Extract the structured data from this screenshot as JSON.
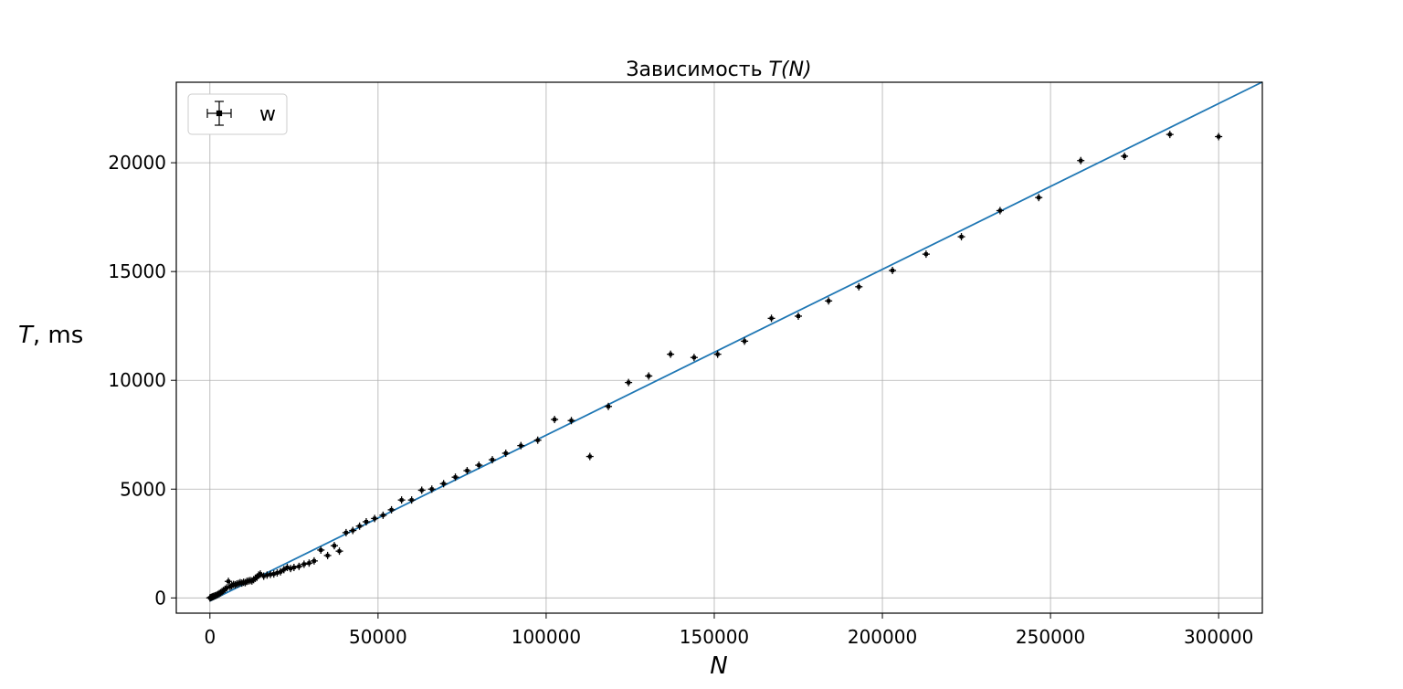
{
  "chart_data": {
    "type": "scatter",
    "title_prefix": "Зависимость ",
    "title_math": "T(N)",
    "xlabel": "N",
    "ylabel_math": "T",
    "ylabel_suffix": ", ms",
    "xlim": [
      -10000,
      313000
    ],
    "ylim": [
      -700,
      23700
    ],
    "xticks": [
      0,
      50000,
      100000,
      150000,
      200000,
      250000,
      300000
    ],
    "yticks": [
      0,
      5000,
      10000,
      15000,
      20000
    ],
    "grid": true,
    "legend": {
      "position": "top-left",
      "entries": [
        "w"
      ]
    },
    "colors": {
      "points": "#000000",
      "fit": "#1f77b4",
      "grid": "#b0b0b0"
    },
    "fit_line": {
      "slope": 0.0762,
      "intercept": -140
    },
    "series": [
      {
        "name": "w",
        "x": [
          0,
          300,
          600,
          900,
          1200,
          1600,
          2000,
          2400,
          2800,
          3200,
          3600,
          4000,
          4500,
          5000,
          5500,
          6000,
          6500,
          7000,
          7500,
          8000,
          8500,
          9000,
          9500,
          10000,
          10500,
          11000,
          11500,
          12000,
          12500,
          13000,
          13500,
          14000,
          14500,
          15000,
          16000,
          17000,
          18000,
          19000,
          20000,
          21000,
          22000,
          23000,
          24000,
          25000,
          26500,
          28000,
          29500,
          31000,
          33000,
          35000,
          37000,
          38500,
          40500,
          42500,
          44500,
          46500,
          49000,
          51500,
          54000,
          57000,
          60000,
          63000,
          66000,
          69500,
          73000,
          76500,
          80000,
          84000,
          88000,
          92500,
          97500,
          102500,
          107500,
          113000,
          118500,
          124500,
          130500,
          137000,
          144000,
          151000,
          159000,
          167000,
          175000,
          184000,
          193000,
          203000,
          213000,
          223500,
          235000,
          246500,
          259000,
          272000,
          285500,
          300000
        ],
        "y": [
          0,
          20,
          40,
          60,
          80,
          100,
          130,
          160,
          200,
          240,
          290,
          340,
          400,
          460,
          760,
          520,
          560,
          620,
          600,
          640,
          660,
          700,
          680,
          720,
          700,
          760,
          780,
          800,
          780,
          840,
          900,
          950,
          1050,
          1100,
          1000,
          1050,
          1080,
          1100,
          1150,
          1200,
          1300,
          1400,
          1350,
          1400,
          1450,
          1550,
          1600,
          1700,
          2200,
          1950,
          2400,
          2150,
          3000,
          3100,
          3300,
          3500,
          3650,
          3800,
          4050,
          4500,
          4500,
          4950,
          5000,
          5250,
          5550,
          5850,
          6100,
          6350,
          6650,
          7000,
          7250,
          8200,
          8150,
          6500,
          8800,
          9900,
          10200,
          11200,
          11050,
          11200,
          11800,
          12850,
          12950,
          13650,
          14300,
          15050,
          15800,
          16600,
          17800,
          18400,
          20100,
          20300,
          21300,
          21200
        ]
      }
    ]
  }
}
